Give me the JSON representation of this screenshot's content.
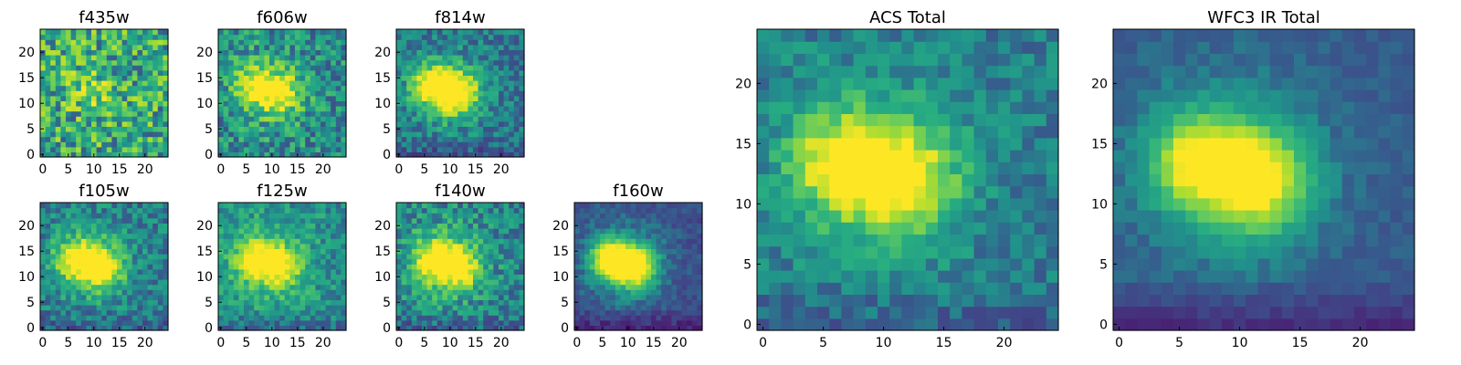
{
  "chart_data": [
    {
      "type": "heatmap",
      "title": "f435w",
      "xticks": [
        0,
        5,
        10,
        15,
        20
      ],
      "yticks": [
        0,
        5,
        10,
        15,
        20
      ],
      "xlim": [
        0,
        24
      ],
      "ylim": [
        0,
        24
      ],
      "grid": false,
      "colormap": "viridis",
      "pixels": [
        25,
        25
      ],
      "note_values": "normalized 0-1 intensities"
    },
    {
      "type": "heatmap",
      "title": "f606w",
      "xticks": [
        0,
        5,
        10,
        15,
        20
      ],
      "yticks": [
        0,
        5,
        10,
        15,
        20
      ],
      "xlim": [
        0,
        24
      ],
      "ylim": [
        0,
        24
      ],
      "grid": false,
      "colormap": "viridis",
      "pixels": [
        25,
        25
      ]
    },
    {
      "type": "heatmap",
      "title": "f814w",
      "xticks": [
        0,
        5,
        10,
        15,
        20
      ],
      "yticks": [
        0,
        5,
        10,
        15,
        20
      ],
      "xlim": [
        0,
        24
      ],
      "ylim": [
        0,
        24
      ],
      "grid": false,
      "colormap": "viridis",
      "pixels": [
        25,
        25
      ]
    },
    {
      "type": "heatmap",
      "title": "f105w",
      "xticks": [
        0,
        5,
        10,
        15,
        20
      ],
      "yticks": [
        0,
        5,
        10,
        15,
        20
      ],
      "xlim": [
        0,
        24
      ],
      "ylim": [
        0,
        24
      ],
      "grid": false,
      "colormap": "viridis",
      "pixels": [
        25,
        25
      ]
    },
    {
      "type": "heatmap",
      "title": "f125w",
      "xticks": [
        0,
        5,
        10,
        15,
        20
      ],
      "yticks": [
        0,
        5,
        10,
        15,
        20
      ],
      "xlim": [
        0,
        24
      ],
      "ylim": [
        0,
        24
      ],
      "grid": false,
      "colormap": "viridis",
      "pixels": [
        25,
        25
      ]
    },
    {
      "type": "heatmap",
      "title": "f140w",
      "xticks": [
        0,
        5,
        10,
        15,
        20
      ],
      "yticks": [
        0,
        5,
        10,
        15,
        20
      ],
      "xlim": [
        0,
        24
      ],
      "ylim": [
        0,
        24
      ],
      "grid": false,
      "colormap": "viridis",
      "pixels": [
        25,
        25
      ]
    },
    {
      "type": "heatmap",
      "title": "f160w",
      "xticks": [
        0,
        5,
        10,
        15,
        20
      ],
      "yticks": [
        0,
        5,
        10,
        15,
        20
      ],
      "xlim": [
        0,
        24
      ],
      "ylim": [
        0,
        24
      ],
      "grid": false,
      "colormap": "viridis",
      "pixels": [
        25,
        25
      ]
    },
    {
      "type": "heatmap",
      "title": "ACS Total",
      "xticks": [
        0,
        5,
        10,
        15,
        20
      ],
      "yticks": [
        0,
        5,
        10,
        15,
        20
      ],
      "xlim": [
        0,
        24
      ],
      "ylim": [
        0,
        24
      ],
      "grid": false,
      "colormap": "viridis",
      "pixels": [
        25,
        25
      ]
    },
    {
      "type": "heatmap",
      "title": "WFC3 IR Total",
      "xticks": [
        0,
        5,
        10,
        15,
        20
      ],
      "yticks": [
        0,
        5,
        10,
        15,
        20
      ],
      "xlim": [
        0,
        24
      ],
      "ylim": [
        0,
        24
      ],
      "grid": false,
      "colormap": "viridis",
      "pixels": [
        25,
        25
      ]
    }
  ],
  "colors": {
    "frame": "#000000",
    "viridis_low": "#440154",
    "viridis_mid": "#21918c",
    "viridis_high": "#fde725"
  }
}
